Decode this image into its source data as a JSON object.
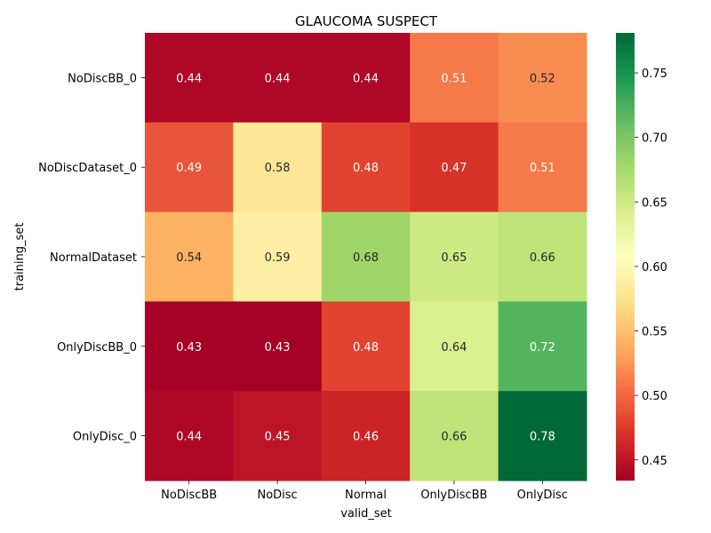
{
  "chart_data": {
    "type": "heatmap",
    "title": "GLAUCOMA SUSPECT",
    "xlabel": "valid_set",
    "ylabel": "training_set",
    "x_categories": [
      "NoDiscBB",
      "NoDisc",
      "Normal",
      "OnlyDiscBB",
      "OnlyDisc"
    ],
    "y_categories": [
      "NoDiscBB_0",
      "NoDiscDataset_0",
      "NormalDataset",
      "OnlyDiscBB_0",
      "OnlyDisc_0"
    ],
    "values": [
      [
        0.44,
        0.44,
        0.44,
        0.51,
        0.52
      ],
      [
        0.49,
        0.58,
        0.48,
        0.47,
        0.51
      ],
      [
        0.54,
        0.59,
        0.68,
        0.65,
        0.66
      ],
      [
        0.43,
        0.43,
        0.48,
        0.64,
        0.72
      ],
      [
        0.44,
        0.45,
        0.46,
        0.66,
        0.78
      ]
    ],
    "value_labels": [
      [
        "0.44",
        "0.44",
        "0.44",
        "0.51",
        "0.52"
      ],
      [
        "0.49",
        "0.58",
        "0.48",
        "0.47",
        "0.51"
      ],
      [
        "0.54",
        "0.59",
        "0.68",
        "0.65",
        "0.66"
      ],
      [
        "0.43",
        "0.43",
        "0.48",
        "0.64",
        "0.72"
      ],
      [
        "0.44",
        "0.45",
        "0.46",
        "0.66",
        "0.78"
      ]
    ],
    "colormap": "RdYlGn",
    "colorbar": {
      "vmin": 0.434,
      "vmax": 0.781,
      "ticks": [
        0.45,
        0.5,
        0.55,
        0.6,
        0.65,
        0.7,
        0.75
      ],
      "tick_labels": [
        "0.45",
        "0.50",
        "0.55",
        "0.60",
        "0.65",
        "0.70",
        "0.75"
      ]
    },
    "grid": false,
    "legend": "colorbar-right"
  }
}
